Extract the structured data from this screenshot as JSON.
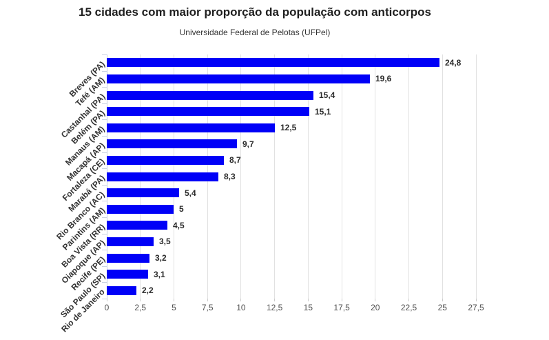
{
  "header": {
    "title": "15 cidades com maior proporção da população com anticorpos",
    "subtitle": "Universidade Federal de Pelotas (UFPel)"
  },
  "chart_data": {
    "type": "bar",
    "orientation": "horizontal",
    "title": "15 cidades com maior proporção da população com anticorpos",
    "subtitle": "Universidade Federal de Pelotas (UFPel)",
    "categories": [
      "Breves (PA)",
      "Tefé (AM)",
      "Castanhal (PA)",
      "Belém (PA)",
      "Manaus (AM)",
      "Macapá (AP)",
      "Fortaleza (CE)",
      "Marabá (PA)",
      "Rio Branco (AC)",
      "Parintins (AM)",
      "Boa Vista (RR)",
      "Oiapoque (AP)",
      "Recife (PE)",
      "São Paulo (SP)",
      "Rio de Janeiro"
    ],
    "values": [
      24.8,
      19.6,
      15.4,
      15.1,
      12.5,
      9.7,
      8.7,
      8.3,
      5.4,
      5,
      4.5,
      3.5,
      3.2,
      3.1,
      2.2
    ],
    "value_labels": [
      "24,8",
      "19,6",
      "15,4",
      "15,1",
      "12,5",
      "9,7",
      "8,7",
      "8,3",
      "5,4",
      "5",
      "4,5",
      "3,5",
      "3,2",
      "3,1",
      "2,2"
    ],
    "xlim": [
      0,
      27.5
    ],
    "x_tick_values": [
      0,
      2.5,
      5,
      7.5,
      10,
      12.5,
      15,
      17.5,
      20,
      22.5,
      25,
      27.5
    ],
    "x_tick_labels": [
      "0",
      "2,5",
      "5",
      "7,5",
      "10",
      "12,5",
      "15",
      "17,5",
      "20",
      "22,5",
      "25",
      "27,5"
    ],
    "grid": true,
    "legend": false,
    "bar_color": "#0000F7"
  },
  "colors": {
    "bar": "#0000F7",
    "gridline": "#e1e1e1",
    "axis": "#c9d2e2",
    "x_tick_mark": "#cccccc",
    "title_text": "#1f1f1f",
    "label_text": "#333333",
    "tick_text": "#4f4f4f",
    "background": "#ffffff"
  }
}
